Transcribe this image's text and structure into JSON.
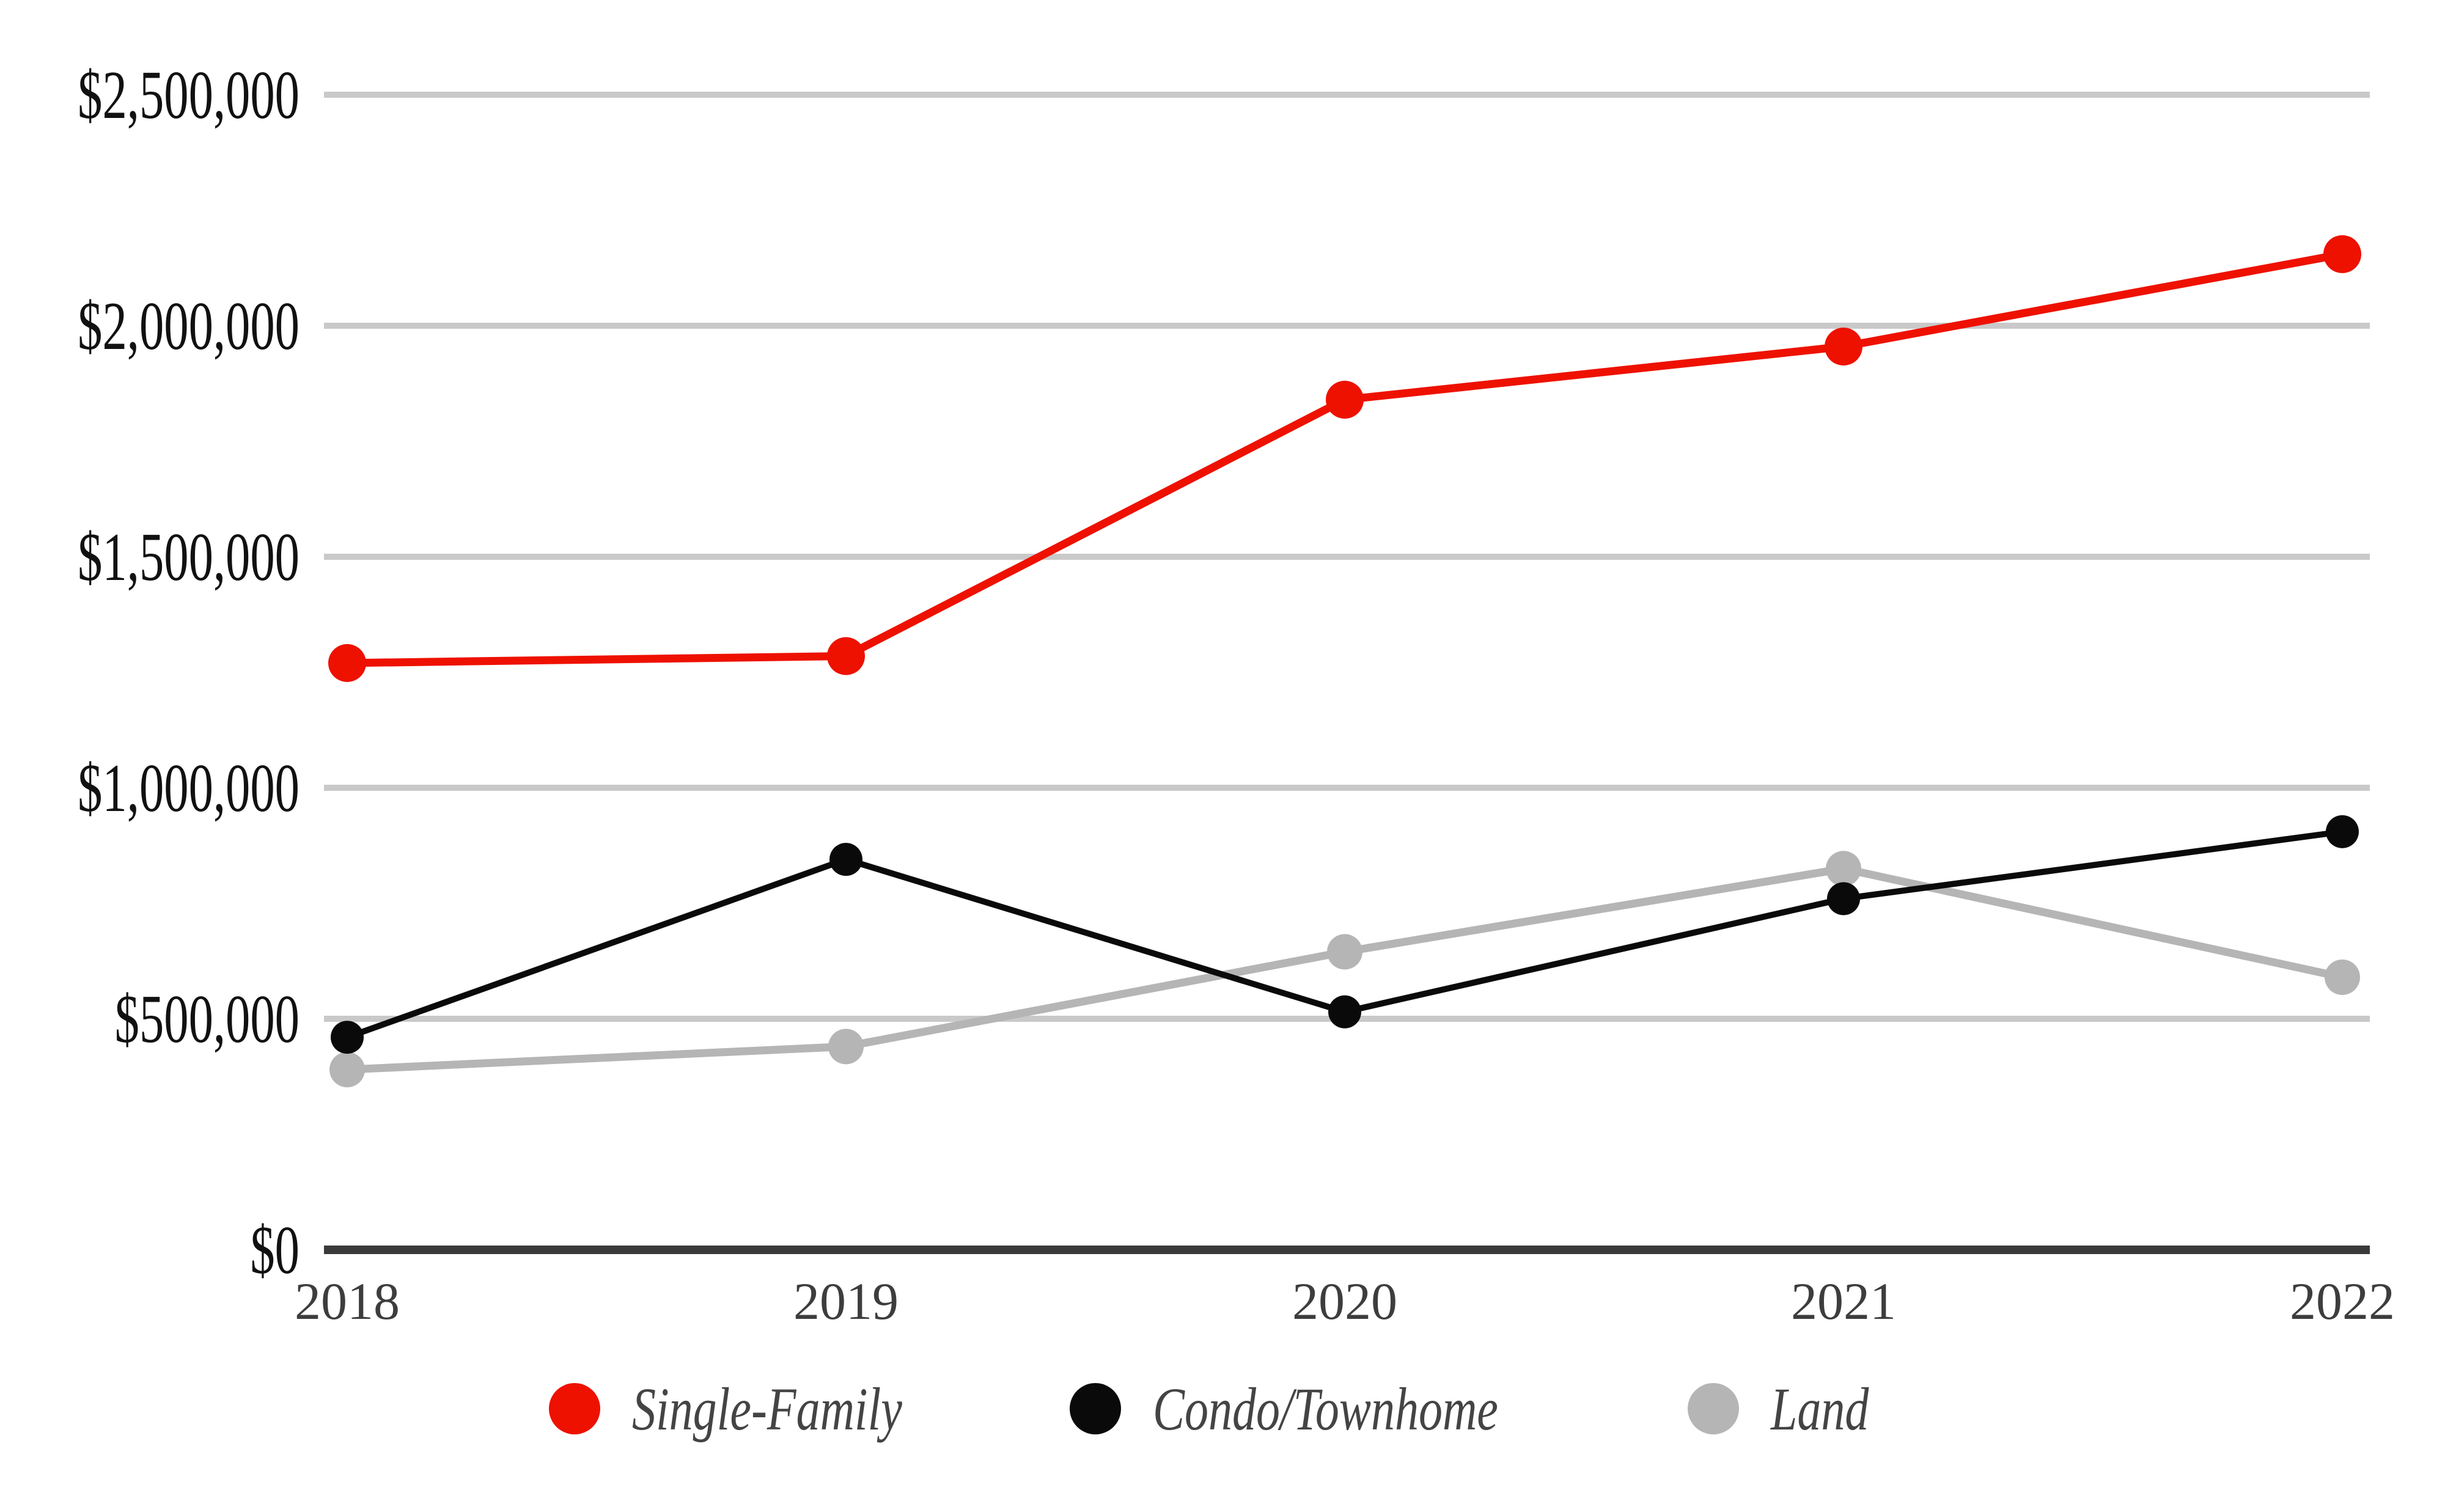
{
  "chart_data": {
    "type": "line",
    "categories": [
      "2018",
      "2019",
      "2020",
      "2021",
      "2022"
    ],
    "series": [
      {
        "name": "Single-Family",
        "color": "#ee1100",
        "values": [
          1270000,
          1285000,
          1840000,
          1955000,
          2155000
        ]
      },
      {
        "name": "Condo/Townhome",
        "color": "#0a0a0a",
        "values": [
          460000,
          845000,
          515000,
          760000,
          905000
        ]
      },
      {
        "name": "Land",
        "color": "#b5b5b5",
        "values": [
          390000,
          440000,
          645000,
          825000,
          590000
        ]
      }
    ],
    "ylim": [
      0,
      2500000
    ],
    "y_ticks": [
      {
        "value": 0,
        "label": "$0"
      },
      {
        "value": 500000,
        "label": "$500,000"
      },
      {
        "value": 1000000,
        "label": "$1,000,000"
      },
      {
        "value": 1500000,
        "label": "$1,500,000"
      },
      {
        "value": 2000000,
        "label": "$2,000,000"
      },
      {
        "value": 2500000,
        "label": "$2,500,000"
      }
    ],
    "xlabel": "",
    "ylabel": "",
    "title": "",
    "grid": "horizontal",
    "legend_position": "bottom",
    "colors": {
      "background": "#ffffff",
      "gridline": "#c9c9c9",
      "axis": "#3a3a3a",
      "y_tick_label": "#111111",
      "x_tick_label": "#3d3d3d",
      "legend_text": "#444444"
    }
  }
}
